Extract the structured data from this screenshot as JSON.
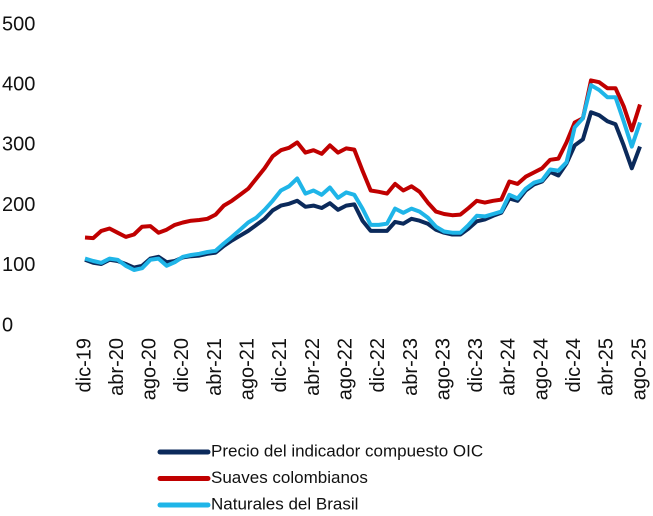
{
  "chart_data": {
    "type": "line",
    "categories": [
      "dic-19",
      null,
      null,
      null,
      "abr-20",
      null,
      null,
      null,
      "ago-20",
      null,
      null,
      null,
      "dic-20",
      null,
      null,
      null,
      "abr-21",
      null,
      null,
      null,
      "ago-21",
      null,
      null,
      null,
      "dic-21",
      null,
      null,
      null,
      "abr-22",
      null,
      null,
      null,
      "ago-22",
      null,
      null,
      null,
      "dic-22",
      null,
      null,
      null,
      "abr-23",
      null,
      null,
      null,
      "ago-23",
      null,
      null,
      null,
      "dic-23",
      null,
      null,
      null,
      "abr-24",
      null,
      null,
      null,
      "ago-24",
      null,
      null,
      null,
      "dic-24",
      null,
      null,
      null,
      "abr-25",
      null,
      null,
      null,
      "ago-25"
    ],
    "series": [
      {
        "name": "Precio del indicador compuesto OIC",
        "color": "#0b2a5b",
        "values": [
          110,
          105,
          103,
          110,
          108,
          103,
          97,
          100,
          112,
          115,
          106,
          108,
          114,
          116,
          117,
          120,
          122,
          133,
          142,
          150,
          158,
          168,
          178,
          192,
          200,
          203,
          208,
          198,
          200,
          196,
          204,
          193,
          200,
          202,
          175,
          158,
          158,
          158,
          173,
          170,
          178,
          175,
          170,
          160,
          155,
          152,
          152,
          162,
          174,
          177,
          183,
          188,
          212,
          208,
          225,
          235,
          240,
          256,
          250,
          270,
          300,
          310,
          355,
          350,
          340,
          335,
          300,
          262,
          298
        ]
      },
      {
        "name": "Suaves colombianos",
        "color": "#c00000",
        "values": [
          147,
          146,
          158,
          162,
          155,
          148,
          152,
          165,
          166,
          155,
          160,
          168,
          172,
          175,
          176,
          178,
          185,
          200,
          208,
          218,
          228,
          245,
          262,
          282,
          292,
          296,
          305,
          288,
          292,
          286,
          300,
          288,
          295,
          293,
          258,
          225,
          223,
          220,
          236,
          225,
          232,
          223,
          205,
          190,
          186,
          184,
          185,
          196,
          208,
          205,
          208,
          210,
          240,
          236,
          248,
          255,
          262,
          276,
          278,
          305,
          338,
          345,
          408,
          405,
          395,
          395,
          365,
          325,
          368
        ]
      },
      {
        "name": "Naturales del Brasil",
        "color": "#1fb5e8",
        "values": [
          112,
          108,
          105,
          112,
          110,
          100,
          93,
          96,
          110,
          112,
          100,
          106,
          115,
          118,
          120,
          123,
          125,
          137,
          148,
          160,
          172,
          180,
          193,
          208,
          225,
          232,
          245,
          220,
          225,
          218,
          230,
          213,
          222,
          218,
          195,
          168,
          168,
          170,
          195,
          188,
          195,
          190,
          180,
          165,
          157,
          155,
          155,
          168,
          183,
          182,
          186,
          190,
          218,
          212,
          228,
          238,
          242,
          260,
          258,
          272,
          330,
          345,
          400,
          392,
          380,
          380,
          340,
          298,
          338
        ]
      }
    ],
    "ylim": [
      0,
      500
    ],
    "yticks": [
      0,
      100,
      200,
      300,
      400,
      500
    ],
    "grid": false
  }
}
